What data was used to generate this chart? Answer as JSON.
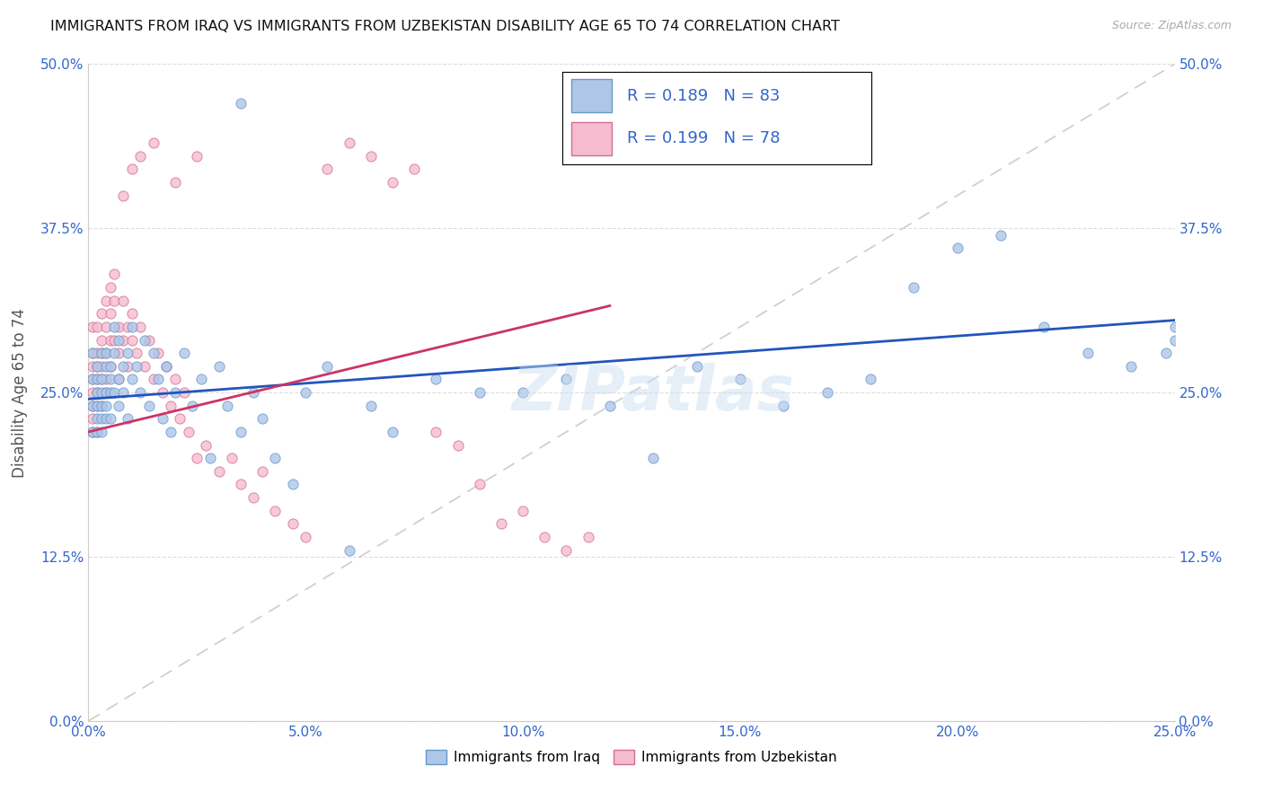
{
  "title": "IMMIGRANTS FROM IRAQ VS IMMIGRANTS FROM UZBEKISTAN DISABILITY AGE 65 TO 74 CORRELATION CHART",
  "source": "Source: ZipAtlas.com",
  "xlabel_ticks": [
    "0.0%",
    "5.0%",
    "10.0%",
    "15.0%",
    "20.0%",
    "25.0%"
  ],
  "xlabel_vals": [
    0.0,
    0.05,
    0.1,
    0.15,
    0.2,
    0.25
  ],
  "ylabel_ticks": [
    "0.0%",
    "12.5%",
    "25.0%",
    "37.5%",
    "50.0%"
  ],
  "ylabel_vals": [
    0.0,
    0.125,
    0.25,
    0.375,
    0.5
  ],
  "ylabel_label": "Disability Age 65 to 74",
  "xlim": [
    0.0,
    0.25
  ],
  "ylim": [
    0.0,
    0.5
  ],
  "iraq_color": "#aec6e8",
  "iraq_edge": "#6699cc",
  "uzbekistan_color": "#f5bcd0",
  "uzbekistan_edge": "#d07090",
  "iraq_R": 0.189,
  "iraq_N": 83,
  "uzbekistan_R": 0.199,
  "uzbekistan_N": 78,
  "iraq_line_color": "#2255bb",
  "uzbekistan_line_color": "#cc3366",
  "diagonal_color": "#d0d0d0",
  "watermark": "ZIPatlas",
  "legend_label_iraq": "Immigrants from Iraq",
  "legend_label_uzbekistan": "Immigrants from Uzbekistan",
  "iraq_x": [
    0.001,
    0.001,
    0.001,
    0.001,
    0.002,
    0.002,
    0.002,
    0.002,
    0.002,
    0.002,
    0.003,
    0.003,
    0.003,
    0.003,
    0.003,
    0.003,
    0.004,
    0.004,
    0.004,
    0.004,
    0.004,
    0.005,
    0.005,
    0.005,
    0.005,
    0.006,
    0.006,
    0.006,
    0.007,
    0.007,
    0.007,
    0.008,
    0.008,
    0.009,
    0.009,
    0.01,
    0.01,
    0.011,
    0.012,
    0.013,
    0.014,
    0.015,
    0.016,
    0.017,
    0.018,
    0.019,
    0.02,
    0.022,
    0.024,
    0.026,
    0.028,
    0.03,
    0.032,
    0.035,
    0.038,
    0.04,
    0.043,
    0.047,
    0.05,
    0.055,
    0.06,
    0.065,
    0.07,
    0.08,
    0.09,
    0.1,
    0.11,
    0.12,
    0.13,
    0.14,
    0.15,
    0.16,
    0.17,
    0.18,
    0.19,
    0.2,
    0.21,
    0.22,
    0.23,
    0.24,
    0.248,
    0.25,
    0.25
  ],
  "iraq_y": [
    0.24,
    0.26,
    0.22,
    0.28,
    0.25,
    0.23,
    0.27,
    0.24,
    0.26,
    0.22,
    0.25,
    0.28,
    0.23,
    0.26,
    0.24,
    0.22,
    0.27,
    0.25,
    0.23,
    0.28,
    0.24,
    0.26,
    0.25,
    0.23,
    0.27,
    0.3,
    0.28,
    0.25,
    0.29,
    0.26,
    0.24,
    0.27,
    0.25,
    0.28,
    0.23,
    0.26,
    0.3,
    0.27,
    0.25,
    0.29,
    0.24,
    0.28,
    0.26,
    0.23,
    0.27,
    0.22,
    0.25,
    0.28,
    0.24,
    0.26,
    0.2,
    0.27,
    0.24,
    0.22,
    0.25,
    0.23,
    0.2,
    0.18,
    0.25,
    0.27,
    0.13,
    0.24,
    0.22,
    0.26,
    0.25,
    0.25,
    0.26,
    0.24,
    0.2,
    0.27,
    0.26,
    0.24,
    0.25,
    0.26,
    0.33,
    0.36,
    0.37,
    0.3,
    0.28,
    0.27,
    0.28,
    0.29,
    0.3
  ],
  "uzbekistan_x": [
    0.001,
    0.001,
    0.001,
    0.001,
    0.001,
    0.001,
    0.001,
    0.001,
    0.002,
    0.002,
    0.002,
    0.002,
    0.002,
    0.002,
    0.002,
    0.003,
    0.003,
    0.003,
    0.003,
    0.003,
    0.003,
    0.004,
    0.004,
    0.004,
    0.004,
    0.004,
    0.005,
    0.005,
    0.005,
    0.005,
    0.006,
    0.006,
    0.006,
    0.007,
    0.007,
    0.007,
    0.008,
    0.008,
    0.009,
    0.009,
    0.01,
    0.01,
    0.011,
    0.012,
    0.013,
    0.014,
    0.015,
    0.016,
    0.017,
    0.018,
    0.019,
    0.02,
    0.021,
    0.022,
    0.023,
    0.025,
    0.027,
    0.03,
    0.033,
    0.035,
    0.038,
    0.04,
    0.043,
    0.047,
    0.05,
    0.055,
    0.06,
    0.065,
    0.07,
    0.075,
    0.08,
    0.085,
    0.09,
    0.095,
    0.1,
    0.105,
    0.11,
    0.115
  ],
  "uzbekistan_y": [
    0.27,
    0.25,
    0.23,
    0.28,
    0.26,
    0.24,
    0.22,
    0.3,
    0.28,
    0.26,
    0.24,
    0.22,
    0.3,
    0.27,
    0.25,
    0.31,
    0.28,
    0.26,
    0.24,
    0.29,
    0.27,
    0.32,
    0.3,
    0.28,
    0.26,
    0.25,
    0.33,
    0.31,
    0.29,
    0.27,
    0.34,
    0.32,
    0.29,
    0.3,
    0.28,
    0.26,
    0.32,
    0.29,
    0.3,
    0.27,
    0.29,
    0.31,
    0.28,
    0.3,
    0.27,
    0.29,
    0.26,
    0.28,
    0.25,
    0.27,
    0.24,
    0.26,
    0.23,
    0.25,
    0.22,
    0.2,
    0.21,
    0.19,
    0.2,
    0.18,
    0.17,
    0.19,
    0.16,
    0.15,
    0.14,
    0.42,
    0.44,
    0.43,
    0.41,
    0.42,
    0.22,
    0.21,
    0.18,
    0.15,
    0.16,
    0.14,
    0.13,
    0.14
  ]
}
